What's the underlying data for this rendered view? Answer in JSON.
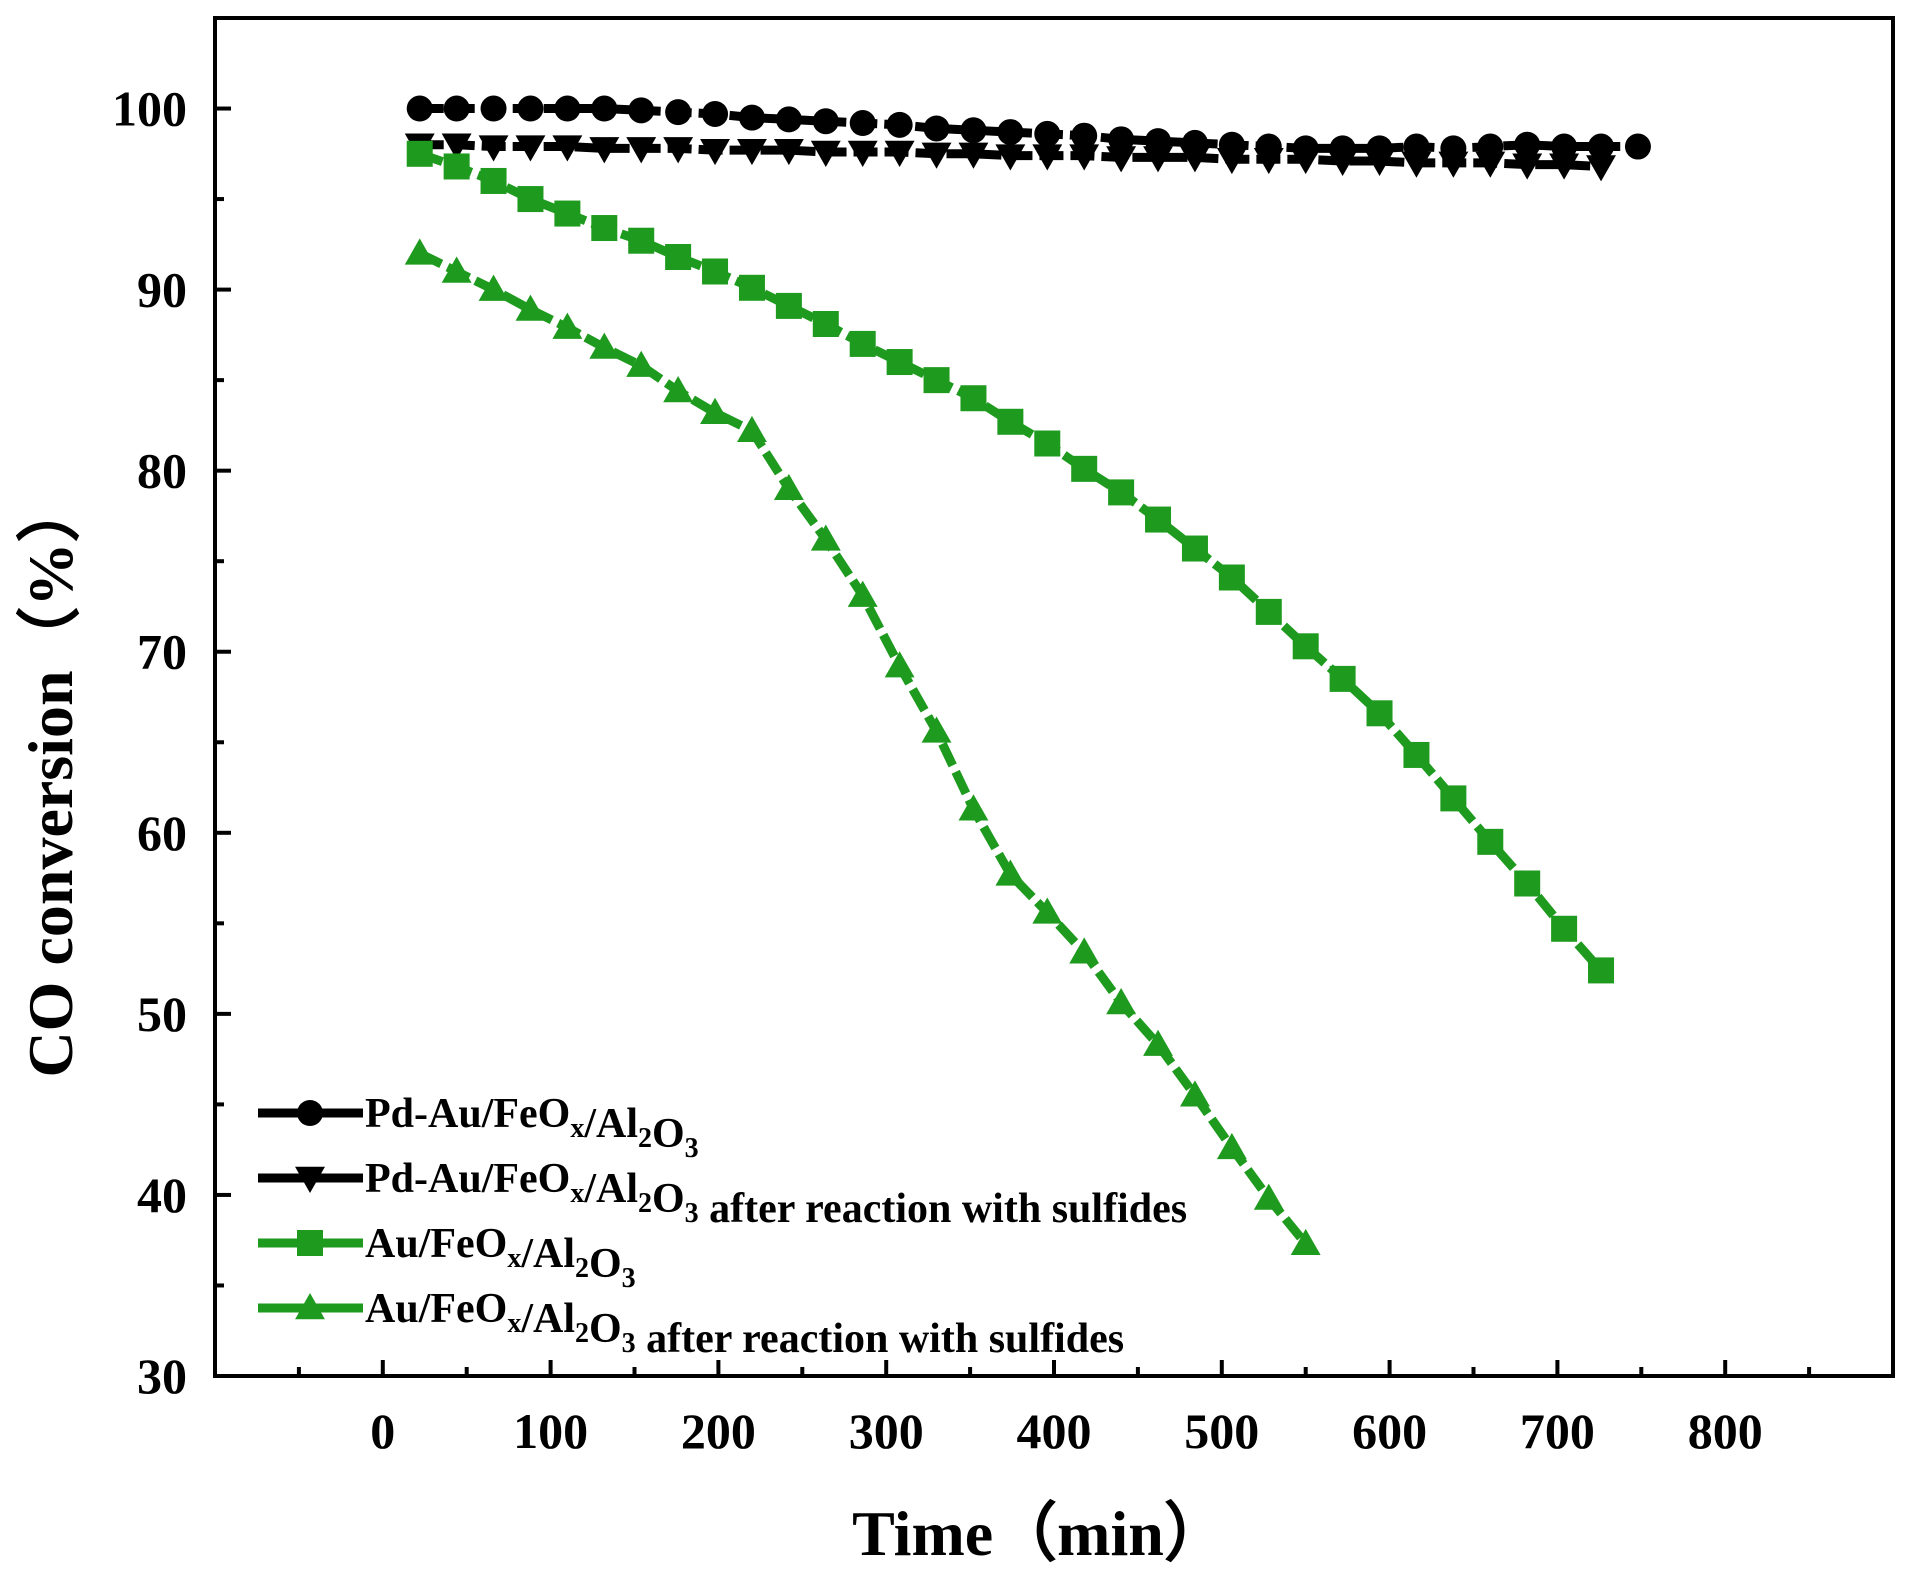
{
  "chart_data": {
    "type": "line",
    "title": "",
    "xlabel": "Time（min）",
    "ylabel": "CO conversion（%）",
    "xlim": [
      -100,
      900
    ],
    "ylim": [
      30,
      105
    ],
    "xticks": [
      0,
      100,
      200,
      300,
      400,
      500,
      600,
      700,
      800
    ],
    "yticks": [
      30,
      40,
      50,
      60,
      70,
      80,
      90,
      100
    ],
    "x_tick_labels": [
      "0",
      "100",
      "200",
      "300",
      "400",
      "500",
      "600",
      "700",
      "800"
    ],
    "y_tick_labels": [
      "30",
      "40",
      "50",
      "60",
      "70",
      "80",
      "90",
      "100"
    ],
    "legend_position": "bottom-left",
    "series": [
      {
        "name": "Pd-Au/FeOx/Al2O3",
        "legend": [
          {
            "t": "Pd-Au/FeO",
            "s": ""
          },
          {
            "t": "x",
            "s": "sub"
          },
          {
            "t": "/Al",
            "s": ""
          },
          {
            "t": "2",
            "s": "sub"
          },
          {
            "t": "O",
            "s": ""
          },
          {
            "t": "3",
            "s": "sub"
          }
        ],
        "color": "#000000",
        "marker": "circle",
        "x": [
          22,
          44,
          66,
          88,
          110,
          132,
          154,
          176,
          198,
          220,
          242,
          264,
          286,
          308,
          330,
          352,
          374,
          396,
          418,
          440,
          462,
          484,
          506,
          528,
          550,
          572,
          594,
          616,
          638,
          660,
          682,
          704,
          726,
          748
        ],
        "y": [
          100,
          100,
          100,
          100,
          100,
          100,
          99.9,
          99.8,
          99.7,
          99.5,
          99.4,
          99.3,
          99.2,
          99.1,
          98.9,
          98.8,
          98.7,
          98.6,
          98.5,
          98.3,
          98.2,
          98.1,
          98.0,
          97.9,
          97.8,
          97.8,
          97.8,
          97.9,
          97.8,
          97.9,
          98.0,
          97.9,
          97.9,
          97.9
        ]
      },
      {
        "name": "Pd-Au/FeOx/Al2O3 after reaction with sulfides",
        "legend": [
          {
            "t": "Pd-Au/FeO",
            "s": ""
          },
          {
            "t": "x",
            "s": "sub"
          },
          {
            "t": "/Al",
            "s": ""
          },
          {
            "t": "2",
            "s": "sub"
          },
          {
            "t": "O",
            "s": ""
          },
          {
            "t": "3",
            "s": "sub"
          },
          {
            "t": " after reaction with sulfides",
            "s": ""
          }
        ],
        "color": "#000000",
        "marker": "triangle-down",
        "x": [
          22,
          44,
          66,
          88,
          110,
          132,
          154,
          176,
          198,
          220,
          242,
          264,
          286,
          308,
          330,
          352,
          374,
          396,
          418,
          440,
          462,
          484,
          506,
          528,
          550,
          572,
          594,
          616,
          638,
          660,
          682,
          704,
          726
        ],
        "y": [
          98.0,
          98.0,
          97.9,
          97.9,
          97.9,
          97.8,
          97.8,
          97.8,
          97.7,
          97.7,
          97.7,
          97.6,
          97.6,
          97.6,
          97.5,
          97.5,
          97.4,
          97.4,
          97.4,
          97.3,
          97.3,
          97.3,
          97.2,
          97.2,
          97.2,
          97.1,
          97.1,
          97.0,
          97.0,
          97.0,
          96.9,
          96.9,
          96.8
        ]
      },
      {
        "name": "Au/FeOx/Al2O3",
        "legend": [
          {
            "t": "Au/FeO",
            "s": ""
          },
          {
            "t": "x",
            "s": "sub"
          },
          {
            "t": "/Al",
            "s": ""
          },
          {
            "t": "2",
            "s": "sub"
          },
          {
            "t": "O",
            "s": ""
          },
          {
            "t": "3",
            "s": "sub"
          }
        ],
        "color": "#1e9a1e",
        "marker": "square",
        "x": [
          22,
          44,
          66,
          88,
          110,
          132,
          154,
          176,
          198,
          220,
          242,
          264,
          286,
          308,
          330,
          352,
          374,
          396,
          418,
          440,
          462,
          484,
          506,
          528,
          550,
          572,
          594,
          616,
          638,
          660,
          682,
          704,
          726
        ],
        "y": [
          97.5,
          96.8,
          96.0,
          95.0,
          94.2,
          93.4,
          92.7,
          91.8,
          91.0,
          90.1,
          89.1,
          88.1,
          87.0,
          86.0,
          85.0,
          84.0,
          82.7,
          81.5,
          80.1,
          78.8,
          77.3,
          75.7,
          74.1,
          72.2,
          70.3,
          68.5,
          66.6,
          64.3,
          61.9,
          59.5,
          57.2,
          54.7,
          52.4
        ]
      },
      {
        "name": "Au/FeOx/Al2O3 after reaction with sulfides",
        "legend": [
          {
            "t": "Au/FeO",
            "s": ""
          },
          {
            "t": "x",
            "s": "sub"
          },
          {
            "t": "/Al",
            "s": ""
          },
          {
            "t": "2",
            "s": "sub"
          },
          {
            "t": "O",
            "s": ""
          },
          {
            "t": "3",
            "s": "sub"
          },
          {
            "t": " after reaction with sulfides",
            "s": ""
          }
        ],
        "color": "#1e9a1e",
        "marker": "triangle-up",
        "x": [
          22,
          44,
          66,
          88,
          110,
          132,
          154,
          176,
          198,
          220,
          242,
          264,
          286,
          308,
          330,
          352,
          374,
          396,
          418,
          440,
          462,
          484,
          506,
          528,
          550
        ],
        "y": [
          92.0,
          91.0,
          90.0,
          88.9,
          87.9,
          86.8,
          85.8,
          84.4,
          83.2,
          82.2,
          79.0,
          76.2,
          73.1,
          69.2,
          65.6,
          61.3,
          57.7,
          55.6,
          53.4,
          50.6,
          48.3,
          45.5,
          42.6,
          39.8,
          37.3
        ]
      }
    ]
  }
}
